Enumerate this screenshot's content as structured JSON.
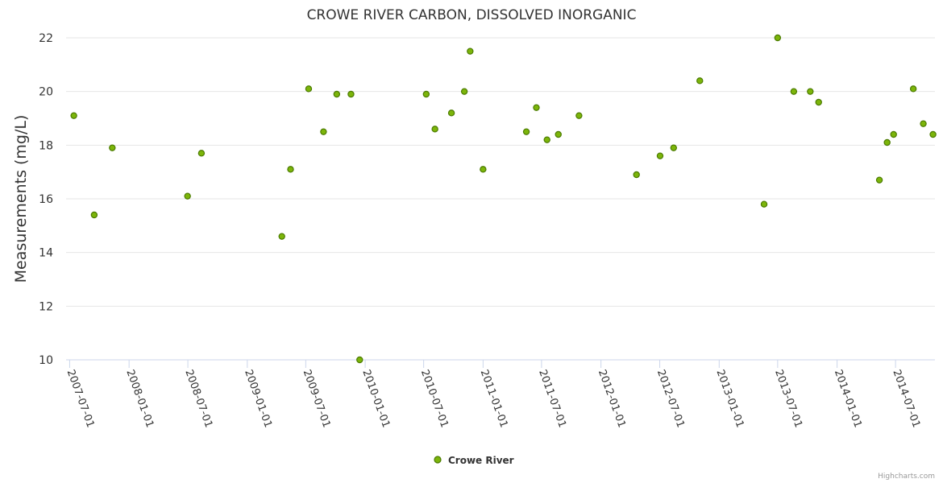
{
  "credits": "Highcharts.com",
  "chart_data": {
    "type": "scatter",
    "title": "CROWE RIVER CARBON, DISSOLVED INORGANIC",
    "xlabel": "",
    "ylabel": "Measurements (mg/L)",
    "ylim": [
      10,
      22
    ],
    "yticks": [
      10,
      12,
      14,
      16,
      18,
      20,
      22
    ],
    "xlim": [
      "2007-06-20",
      "2014-10-31"
    ],
    "xticks": [
      "2007-07-01",
      "2008-01-01",
      "2008-07-01",
      "2009-01-01",
      "2009-07-01",
      "2010-01-01",
      "2010-07-01",
      "2011-01-01",
      "2011-07-01",
      "2012-01-01",
      "2012-07-01",
      "2013-01-01",
      "2013-07-01",
      "2014-01-01",
      "2014-07-01"
    ],
    "legend": "bottom-center",
    "grid": true,
    "color": "#7cb50a",
    "marker_stroke": "#4a7a00",
    "series": [
      {
        "name": "Crowe River",
        "points": [
          [
            "2007-07-14",
            19.1
          ],
          [
            "2007-09-15",
            15.4
          ],
          [
            "2007-11-10",
            17.9
          ],
          [
            "2008-06-30",
            16.1
          ],
          [
            "2008-08-12",
            17.7
          ],
          [
            "2009-04-18",
            14.6
          ],
          [
            "2009-05-15",
            17.1
          ],
          [
            "2009-07-10",
            20.1
          ],
          [
            "2009-08-25",
            18.5
          ],
          [
            "2009-10-05",
            19.9
          ],
          [
            "2009-11-18",
            19.9
          ],
          [
            "2009-12-15",
            10.0
          ],
          [
            "2010-07-09",
            19.9
          ],
          [
            "2010-08-05",
            18.6
          ],
          [
            "2010-09-25",
            19.2
          ],
          [
            "2010-11-04",
            20.0
          ],
          [
            "2010-11-22",
            21.5
          ],
          [
            "2011-01-01",
            17.1
          ],
          [
            "2011-05-15",
            18.5
          ],
          [
            "2011-06-15",
            19.4
          ],
          [
            "2011-07-18",
            18.2
          ],
          [
            "2011-08-22",
            18.4
          ],
          [
            "2011-10-25",
            19.1
          ],
          [
            "2012-04-20",
            16.9
          ],
          [
            "2012-07-02",
            17.6
          ],
          [
            "2012-08-13",
            17.9
          ],
          [
            "2012-11-02",
            20.4
          ],
          [
            "2013-05-20",
            15.8
          ],
          [
            "2013-07-01",
            22.0
          ],
          [
            "2013-08-20",
            20.0
          ],
          [
            "2013-10-10",
            20.0
          ],
          [
            "2013-11-05",
            19.6
          ],
          [
            "2014-05-12",
            16.7
          ],
          [
            "2014-06-05",
            18.1
          ],
          [
            "2014-06-25",
            18.4
          ],
          [
            "2014-08-25",
            20.1
          ],
          [
            "2014-09-25",
            18.8
          ],
          [
            "2014-10-25",
            18.4
          ]
        ]
      }
    ]
  }
}
